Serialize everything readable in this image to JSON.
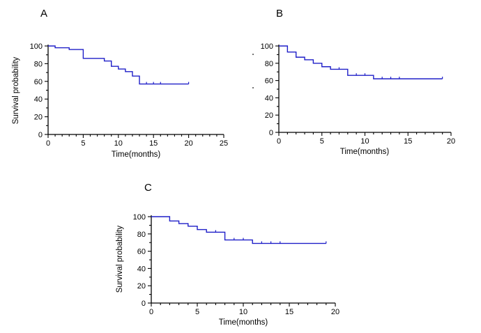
{
  "chart_data": [
    {
      "type": "line",
      "panel": "A",
      "xlabel": "Time(months)",
      "ylabel": "Survival probability",
      "xlim": [
        0,
        25
      ],
      "ylim": [
        0,
        100
      ],
      "xticks": [
        0,
        5,
        10,
        15,
        20,
        25
      ],
      "yticks": [
        0,
        20,
        40,
        60,
        80,
        100
      ],
      "series": [
        {
          "step_x": [
            0,
            1,
            2,
            3,
            5,
            8,
            9,
            10,
            11,
            12,
            13,
            20
          ],
          "step_y": [
            100,
            98,
            98,
            96,
            86,
            83,
            77,
            74,
            71,
            66,
            57,
            57
          ],
          "censor_x": [
            14,
            15,
            16,
            20
          ],
          "censor_y": [
            57,
            57,
            57,
            57
          ]
        }
      ]
    },
    {
      "type": "line",
      "panel": "B",
      "xlabel": "Time(months)",
      "ylabel": "",
      "xlim": [
        0,
        20
      ],
      "ylim": [
        0,
        100
      ],
      "xticks": [
        0,
        5,
        10,
        15,
        20
      ],
      "yticks": [
        0,
        20,
        40,
        60,
        80,
        100
      ],
      "series": [
        {
          "step_x": [
            0,
            1,
            2,
            3,
            4,
            5,
            6,
            8,
            11,
            19
          ],
          "step_y": [
            100,
            93,
            87,
            84,
            80,
            76,
            73,
            66,
            62,
            62
          ],
          "censor_x": [
            7,
            9,
            10,
            12,
            13,
            14,
            19
          ],
          "censor_y": [
            73,
            66,
            66,
            62,
            62,
            62,
            62
          ]
        }
      ]
    },
    {
      "type": "line",
      "panel": "C",
      "xlabel": "Time(months)",
      "ylabel": "Survival probability",
      "xlim": [
        0,
        20
      ],
      "ylim": [
        0,
        100
      ],
      "xticks": [
        0,
        5,
        10,
        15,
        20
      ],
      "yticks": [
        0,
        20,
        40,
        60,
        80,
        100
      ],
      "series": [
        {
          "step_x": [
            0,
            2,
            3,
            4,
            5,
            6,
            8,
            11,
            19
          ],
          "step_y": [
            100,
            95,
            92,
            89,
            85,
            82,
            73,
            69,
            69
          ],
          "censor_x": [
            7,
            9,
            10,
            12,
            13,
            14,
            19
          ],
          "censor_y": [
            82,
            73,
            73,
            69,
            69,
            69,
            69
          ]
        }
      ]
    }
  ]
}
